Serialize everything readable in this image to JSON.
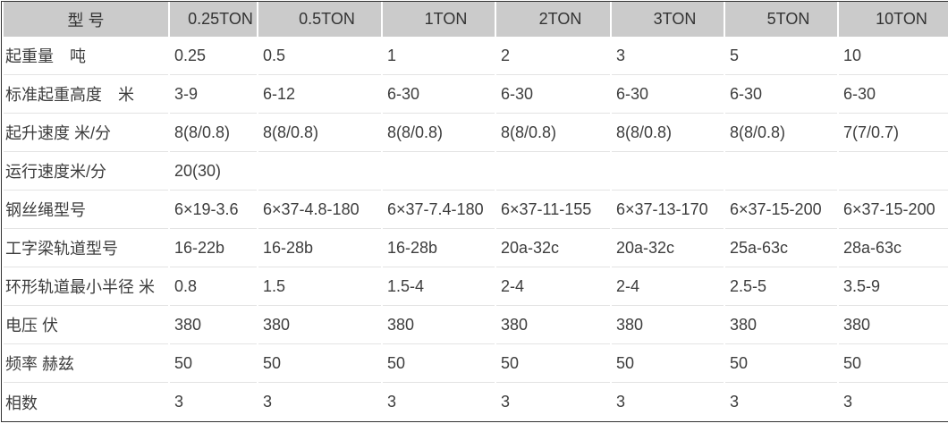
{
  "table": {
    "header": [
      "型 号",
      "0.25TON",
      "0.5TON",
      "1TON",
      "2TON",
      "3TON",
      "5TON",
      "10TON"
    ],
    "rows": [
      {
        "label": "起重量　吨",
        "values": [
          "0.25",
          "0.5",
          "1",
          "2",
          "3",
          "5",
          "10"
        ]
      },
      {
        "label": "标准起重高度　米",
        "values": [
          "3-9",
          "6-12",
          "6-30",
          "6-30",
          "6-30",
          "6-30",
          "6-30"
        ]
      },
      {
        "label": "起升速度 米/分",
        "values": [
          "8(8/0.8)",
          "8(8/0.8)",
          "8(8/0.8)",
          "8(8/0.8)",
          "8(8/0.8)",
          "8(8/0.8)",
          "7(7/0.7)"
        ]
      },
      {
        "label": "运行速度米/分",
        "values": [
          "20(30)",
          "",
          "",
          "",
          "",
          "",
          ""
        ]
      },
      {
        "label": "钢丝绳型号",
        "values": [
          "6×19-3.6",
          "6×37-4.8-180",
          "6×37-7.4-180",
          "6×37-11-155",
          "6×37-13-170",
          "6×37-15-200",
          "6×37-15-200"
        ]
      },
      {
        "label": "工字梁轨道型号",
        "values": [
          "16-22b",
          "16-28b",
          "16-28b",
          "20a-32c",
          "20a-32c",
          "25a-63c",
          "28a-63c"
        ]
      },
      {
        "label": "环形轨道最小半径 米",
        "values": [
          "0.8",
          "1.5",
          "1.5-4",
          "2-4",
          "2-4",
          "2.5-5",
          "3.5-9"
        ]
      },
      {
        "label": "电压 伏",
        "values": [
          "380",
          "380",
          "380",
          "380",
          "380",
          "380",
          "380"
        ]
      },
      {
        "label": "频率 赫兹",
        "values": [
          "50",
          "50",
          "50",
          "50",
          "50",
          "50",
          "50"
        ]
      },
      {
        "label": "相数",
        "values": [
          "3",
          "3",
          "3",
          "3",
          "3",
          "3",
          "3"
        ]
      }
    ],
    "colors": {
      "header_bg": "#cbcbcb",
      "row_border": "#e3e3e3",
      "outer_border": "#333333",
      "text": "#3d3d3d"
    }
  }
}
